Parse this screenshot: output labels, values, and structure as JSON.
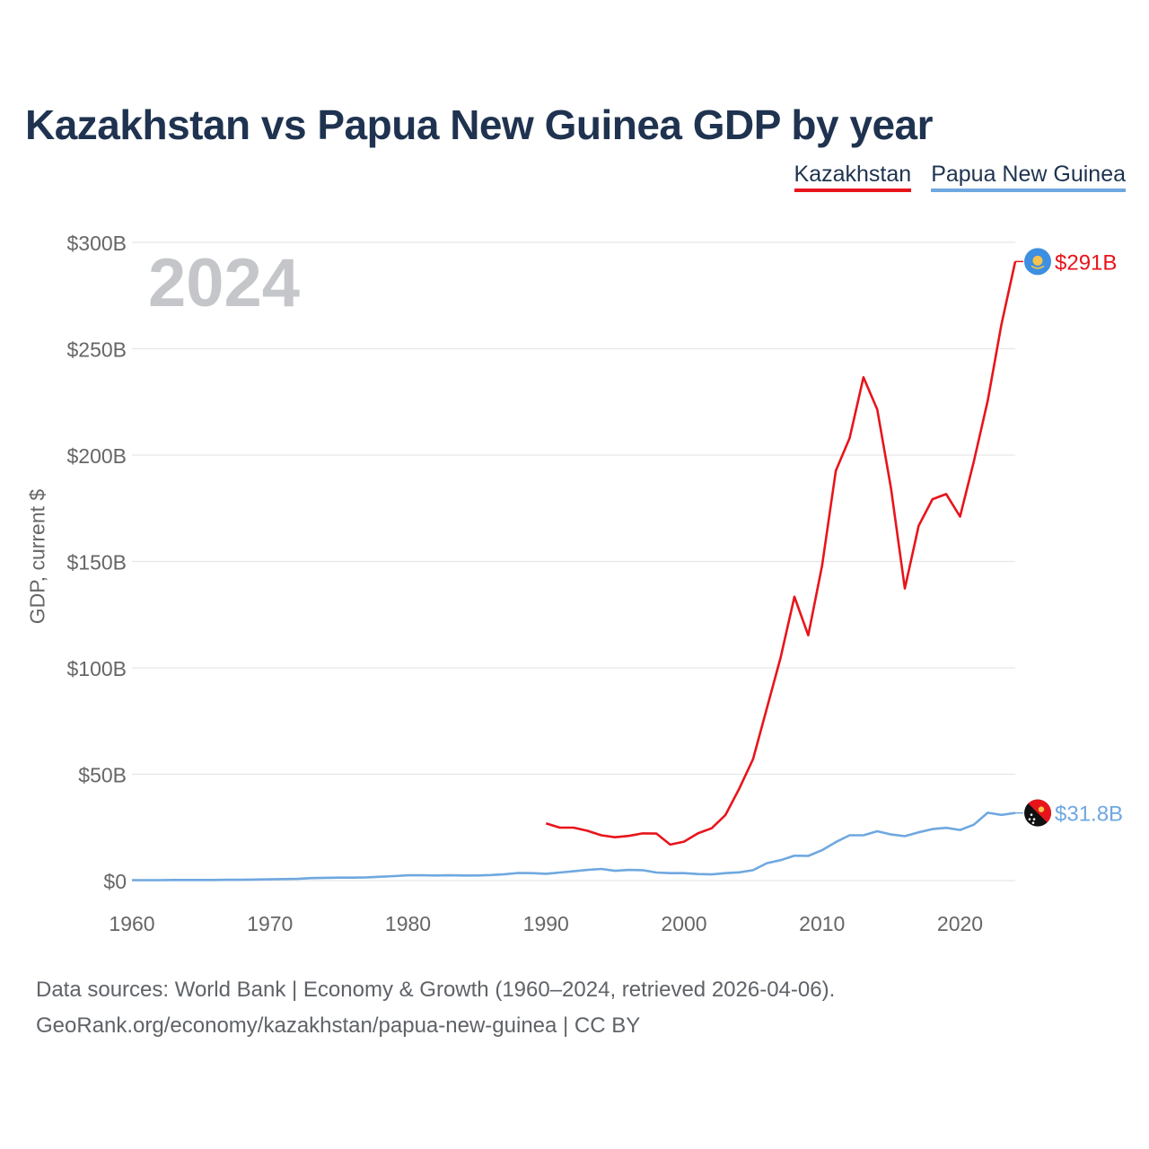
{
  "title": "Kazakhstan vs Papua New Guinea GDP by year",
  "watermark_year": "2024",
  "legend": [
    {
      "label": "Kazakhstan",
      "color": "#e8141b"
    },
    {
      "label": "Papua New Guinea",
      "color": "#6fa8e0"
    }
  ],
  "footer": {
    "line1": "Data sources: World Bank | Economy & Growth (1960–2024, retrieved 2026-04-06).",
    "line2": "GeoRank.org/economy/kazakhstan/papua-new-guinea | CC BY"
  },
  "chart_data": {
    "type": "line",
    "title": "Kazakhstan vs Papua New Guinea GDP by year",
    "xlabel": "",
    "ylabel": "GDP, current $",
    "xlim": [
      1960,
      2024
    ],
    "ylim": [
      0,
      300
    ],
    "x_ticks": [
      "1960",
      "1970",
      "1980",
      "1990",
      "2000",
      "2010",
      "2020"
    ],
    "x_tick_values": [
      1960,
      1970,
      1980,
      1990,
      2000,
      2010,
      2020
    ],
    "y_ticks": [
      "$0",
      "$50B",
      "$100B",
      "$150B",
      "$200B",
      "$250B",
      "$300B"
    ],
    "y_tick_values": [
      0,
      50,
      100,
      150,
      200,
      250,
      300
    ],
    "units": "billions of current US$",
    "grid": true,
    "series": [
      {
        "name": "Kazakhstan",
        "color": "#e8141b",
        "end_label": "$291B",
        "flag_icon": "kazakhstan-flag-icon",
        "x": [
          1990,
          1991,
          1992,
          1993,
          1994,
          1995,
          1996,
          1997,
          1998,
          1999,
          2000,
          2001,
          2002,
          2003,
          2004,
          2005,
          2006,
          2007,
          2008,
          2009,
          2010,
          2011,
          2012,
          2013,
          2014,
          2015,
          2016,
          2017,
          2018,
          2019,
          2020,
          2021,
          2022,
          2023,
          2024
        ],
        "values": [
          26.9,
          24.9,
          24.9,
          23.4,
          21.3,
          20.4,
          21.0,
          22.2,
          22.1,
          16.9,
          18.3,
          22.2,
          24.6,
          30.8,
          43.2,
          57.1,
          81.0,
          104.8,
          133.4,
          115.3,
          148.0,
          192.6,
          208.0,
          236.6,
          221.4,
          184.4,
          137.3,
          166.8,
          179.3,
          181.7,
          171.1,
          197.1,
          225.5,
          261.4,
          291.0
        ]
      },
      {
        "name": "Papua New Guinea",
        "color": "#6fa8e0",
        "end_label": "$31.8B",
        "flag_icon": "papua-new-guinea-flag-icon",
        "x": [
          1960,
          1961,
          1962,
          1963,
          1964,
          1965,
          1966,
          1967,
          1968,
          1969,
          1970,
          1971,
          1972,
          1973,
          1974,
          1975,
          1976,
          1977,
          1978,
          1979,
          1980,
          1981,
          1982,
          1983,
          1984,
          1985,
          1986,
          1987,
          1988,
          1989,
          1990,
          1991,
          1992,
          1993,
          1994,
          1995,
          1996,
          1997,
          1998,
          1999,
          2000,
          2001,
          2002,
          2003,
          2004,
          2005,
          2006,
          2007,
          2008,
          2009,
          2010,
          2011,
          2012,
          2013,
          2014,
          2015,
          2016,
          2017,
          2018,
          2019,
          2020,
          2021,
          2022,
          2023,
          2024
        ],
        "values": [
          0.2,
          0.2,
          0.2,
          0.3,
          0.3,
          0.3,
          0.3,
          0.4,
          0.4,
          0.5,
          0.6,
          0.7,
          0.8,
          1.2,
          1.3,
          1.4,
          1.4,
          1.5,
          1.8,
          2.1,
          2.5,
          2.5,
          2.4,
          2.5,
          2.4,
          2.4,
          2.6,
          3.0,
          3.6,
          3.5,
          3.2,
          3.8,
          4.4,
          5.0,
          5.5,
          4.6,
          5.0,
          4.9,
          3.8,
          3.5,
          3.5,
          3.1,
          2.9,
          3.5,
          3.9,
          4.9,
          8.2,
          9.6,
          11.7,
          11.6,
          14.3,
          18.1,
          21.3,
          21.3,
          23.2,
          21.7,
          20.9,
          22.7,
          24.2,
          24.8,
          23.8,
          26.3,
          31.9,
          30.9,
          31.8
        ]
      }
    ]
  }
}
